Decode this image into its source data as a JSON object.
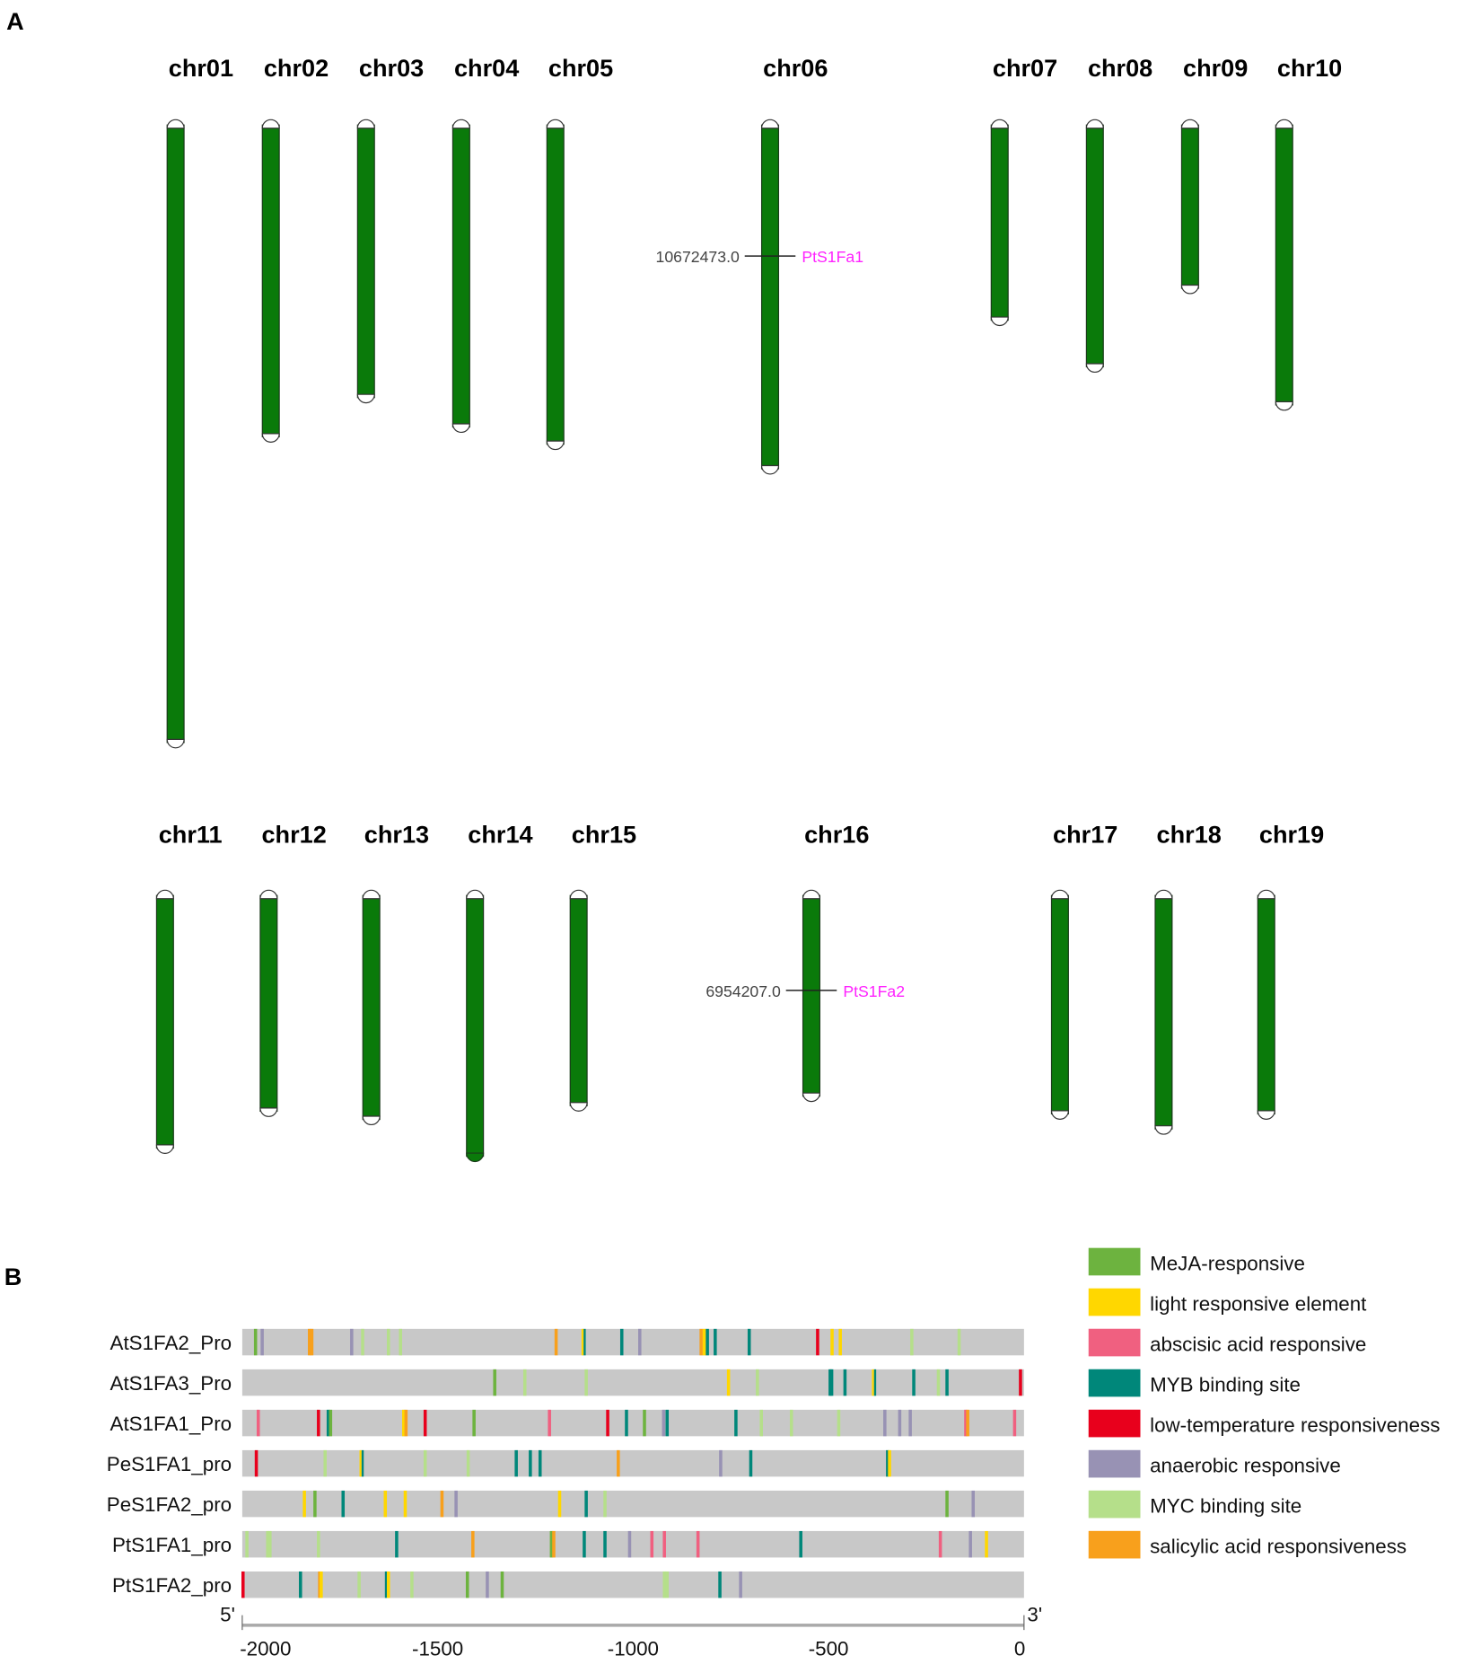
{
  "panel_a": {
    "label": "A",
    "rows": [
      {
        "chromosomes": [
          {
            "name": "chr01",
            "length_mb": 50.3
          },
          {
            "name": "chr02",
            "length_mb": 25.4
          },
          {
            "name": "chr03",
            "length_mb": 22.2
          },
          {
            "name": "chr04",
            "length_mb": 24.6
          },
          {
            "name": "chr05",
            "length_mb": 26.0
          },
          {
            "name": "chr06",
            "length_mb": 28.0,
            "marker": {
              "position": "10672473.0",
              "position_mb": 10.67,
              "gene": "PtS1Fa1"
            }
          },
          {
            "name": "chr07",
            "length_mb": 15.9
          },
          {
            "name": "chr08",
            "length_mb": 19.7
          },
          {
            "name": "chr09",
            "length_mb": 13.3
          },
          {
            "name": "chr10",
            "length_mb": 22.8
          }
        ]
      },
      {
        "chromosomes": [
          {
            "name": "chr11",
            "length_mb": 18.5
          },
          {
            "name": "chr12",
            "length_mb": 15.8
          },
          {
            "name": "chr13",
            "length_mb": 16.4
          },
          {
            "name": "chr14",
            "length_mb": 19.1
          },
          {
            "name": "chr15",
            "length_mb": 15.4
          },
          {
            "name": "chr16",
            "length_mb": 14.7,
            "marker": {
              "position": "6954207.0",
              "position_mb": 6.95,
              "gene": "PtS1Fa2"
            }
          },
          {
            "name": "chr17",
            "length_mb": 16.0
          },
          {
            "name": "chr18",
            "length_mb": 17.1
          },
          {
            "name": "chr19",
            "length_mb": 16.0
          }
        ]
      }
    ],
    "colors": {
      "chromosome": "#0a7a0a",
      "gene": "#ff22ff"
    }
  },
  "panel_b": {
    "label": "B",
    "axis": {
      "min": -2000,
      "max": 0,
      "ticks": [
        "-2000",
        "-1500",
        "-1000",
        "-500",
        "0"
      ],
      "tick_values": [
        -2000,
        -1500,
        -1000,
        -500,
        0
      ],
      "five_prime": "5'",
      "three_prime": "3'"
    },
    "legend": [
      {
        "key": "meja",
        "label": "MeJA-responsive",
        "color": "#6db33f"
      },
      {
        "key": "light",
        "label": "light responsive element",
        "color": "#ffd700"
      },
      {
        "key": "aba",
        "label": "abscisic acid responsive",
        "color": "#f06080"
      },
      {
        "key": "myb",
        "label": "MYB binding site",
        "color": "#00877a"
      },
      {
        "key": "ltr",
        "label": "low-temperature responsiveness",
        "color": "#e8001c"
      },
      {
        "key": "anaer",
        "label": "anaerobic responsive",
        "color": "#9892b4"
      },
      {
        "key": "myc",
        "label": "MYC binding site",
        "color": "#b5df8a"
      },
      {
        "key": "sa",
        "label": "salicylic acid responsiveness",
        "color": "#f8a01c"
      }
    ],
    "promoters": [
      {
        "name": "AtS1FA2_Pro",
        "elements": [
          [
            "meja",
            -1966
          ],
          [
            "anaer",
            -1949
          ],
          [
            "sa",
            -1828
          ],
          [
            "sa",
            -1822
          ],
          [
            "anaer",
            -1720
          ],
          [
            "myc",
            -1692
          ],
          [
            "myc",
            -1626
          ],
          [
            "myc",
            -1595
          ],
          [
            "sa",
            -1197
          ],
          [
            "yellow_myb",
            -1128
          ],
          [
            "myb",
            -1029
          ],
          [
            "anaer",
            -983
          ],
          [
            "sa",
            -826
          ],
          [
            "light",
            -818
          ],
          [
            "myb",
            -810
          ],
          [
            "myb",
            -790
          ],
          [
            "myb",
            -703
          ],
          [
            "ltr",
            -528
          ],
          [
            "light",
            -491
          ],
          [
            "light",
            -470
          ],
          [
            "myc",
            -287
          ],
          [
            "myc",
            -166
          ]
        ]
      },
      {
        "name": "AtS1FA3_Pro",
        "elements": [
          [
            "meja",
            -1354
          ],
          [
            "myc",
            -1277
          ],
          [
            "myc",
            -1120
          ],
          [
            "light",
            -756
          ],
          [
            "myc",
            -682
          ],
          [
            "myb",
            -496
          ],
          [
            "myb",
            -492
          ],
          [
            "myb",
            -458
          ],
          [
            "yellow_myb",
            -385
          ],
          [
            "myb",
            -282
          ],
          [
            "myc",
            -219
          ],
          [
            "myb",
            -197
          ],
          [
            "ltr",
            -9
          ]
        ]
      },
      {
        "name": "AtS1FA1_Pro",
        "elements": [
          [
            "aba",
            -1959
          ],
          [
            "ltr",
            -1805
          ],
          [
            "myb",
            -1780
          ],
          [
            "meja",
            -1774
          ],
          [
            "light",
            -1587
          ],
          [
            "sa",
            -1581
          ],
          [
            "ltr",
            -1532
          ],
          [
            "meja",
            -1407
          ],
          [
            "aba",
            -1214
          ],
          [
            "ltr",
            -1065
          ],
          [
            "myb",
            -1017
          ],
          [
            "meja",
            -971
          ],
          [
            "anaer",
            -922
          ],
          [
            "myb",
            -913
          ],
          [
            "myb",
            -737
          ],
          [
            "myc",
            -672
          ],
          [
            "myc",
            -595
          ],
          [
            "myc",
            -474
          ],
          [
            "anaer",
            -356
          ],
          [
            "anaer",
            -318
          ],
          [
            "anaer",
            -291
          ],
          [
            "aba",
            -149
          ],
          [
            "sa",
            -144
          ],
          [
            "aba",
            -24
          ]
        ]
      },
      {
        "name": "PeS1FA1_pro",
        "elements": [
          [
            "ltr",
            -1964
          ],
          [
            "myc",
            -1788
          ],
          [
            "yellow_myb",
            -1696
          ],
          [
            "myc",
            -1532
          ],
          [
            "myc",
            -1422
          ],
          [
            "myb",
            -1299
          ],
          [
            "myb",
            -1263
          ],
          [
            "myb",
            -1238
          ],
          [
            "sa",
            -1038
          ],
          [
            "anaer",
            -776
          ],
          [
            "myb",
            -699
          ],
          [
            "myb",
            -349
          ],
          [
            "light",
            -344
          ]
        ]
      },
      {
        "name": "PeS1FA2_pro",
        "elements": [
          [
            "light",
            -1841
          ],
          [
            "meja",
            -1814
          ],
          [
            "myb",
            -1742
          ],
          [
            "light",
            -1634
          ],
          [
            "light",
            -1583
          ],
          [
            "sa",
            -1489
          ],
          [
            "anaer",
            -1453
          ],
          [
            "light",
            -1188
          ],
          [
            "myb",
            -1120
          ],
          [
            "myc",
            -1072
          ],
          [
            "meja",
            -197
          ],
          [
            "anaer",
            -130
          ]
        ]
      },
      {
        "name": "PtS1FA1_pro",
        "elements": [
          [
            "myc",
            -1988
          ],
          [
            "myc",
            -1935
          ],
          [
            "myc",
            -1929
          ],
          [
            "myc",
            -1805
          ],
          [
            "myb",
            -1605
          ],
          [
            "sa",
            -1410
          ],
          [
            "meja",
            -1209
          ],
          [
            "sa",
            -1203
          ],
          [
            "myb",
            -1125
          ],
          [
            "myb",
            -1072
          ],
          [
            "anaer",
            -1009
          ],
          [
            "aba",
            -952
          ],
          [
            "aba",
            -920
          ],
          [
            "aba",
            -834
          ],
          [
            "myb",
            -571
          ],
          [
            "aba",
            -214
          ],
          [
            "anaer",
            -137
          ],
          [
            "light",
            -96
          ]
        ]
      },
      {
        "name": "PtS1FA2_pro",
        "elements": [
          [
            "ltr",
            -1998
          ],
          [
            "myb",
            -1851
          ],
          [
            "sa",
            -1802
          ],
          [
            "light",
            -1798
          ],
          [
            "myc",
            -1701
          ],
          [
            "myb",
            -1631
          ],
          [
            "light",
            -1626
          ],
          [
            "myc",
            -1566
          ],
          [
            "meja",
            -1424
          ],
          [
            "anaer",
            -1373
          ],
          [
            "meja",
            -1335
          ],
          [
            "myc",
            -920
          ],
          [
            "myc",
            -913
          ],
          [
            "myb",
            -778
          ],
          [
            "anaer",
            -725
          ]
        ]
      }
    ],
    "bar_color": "#c8c8c8"
  }
}
